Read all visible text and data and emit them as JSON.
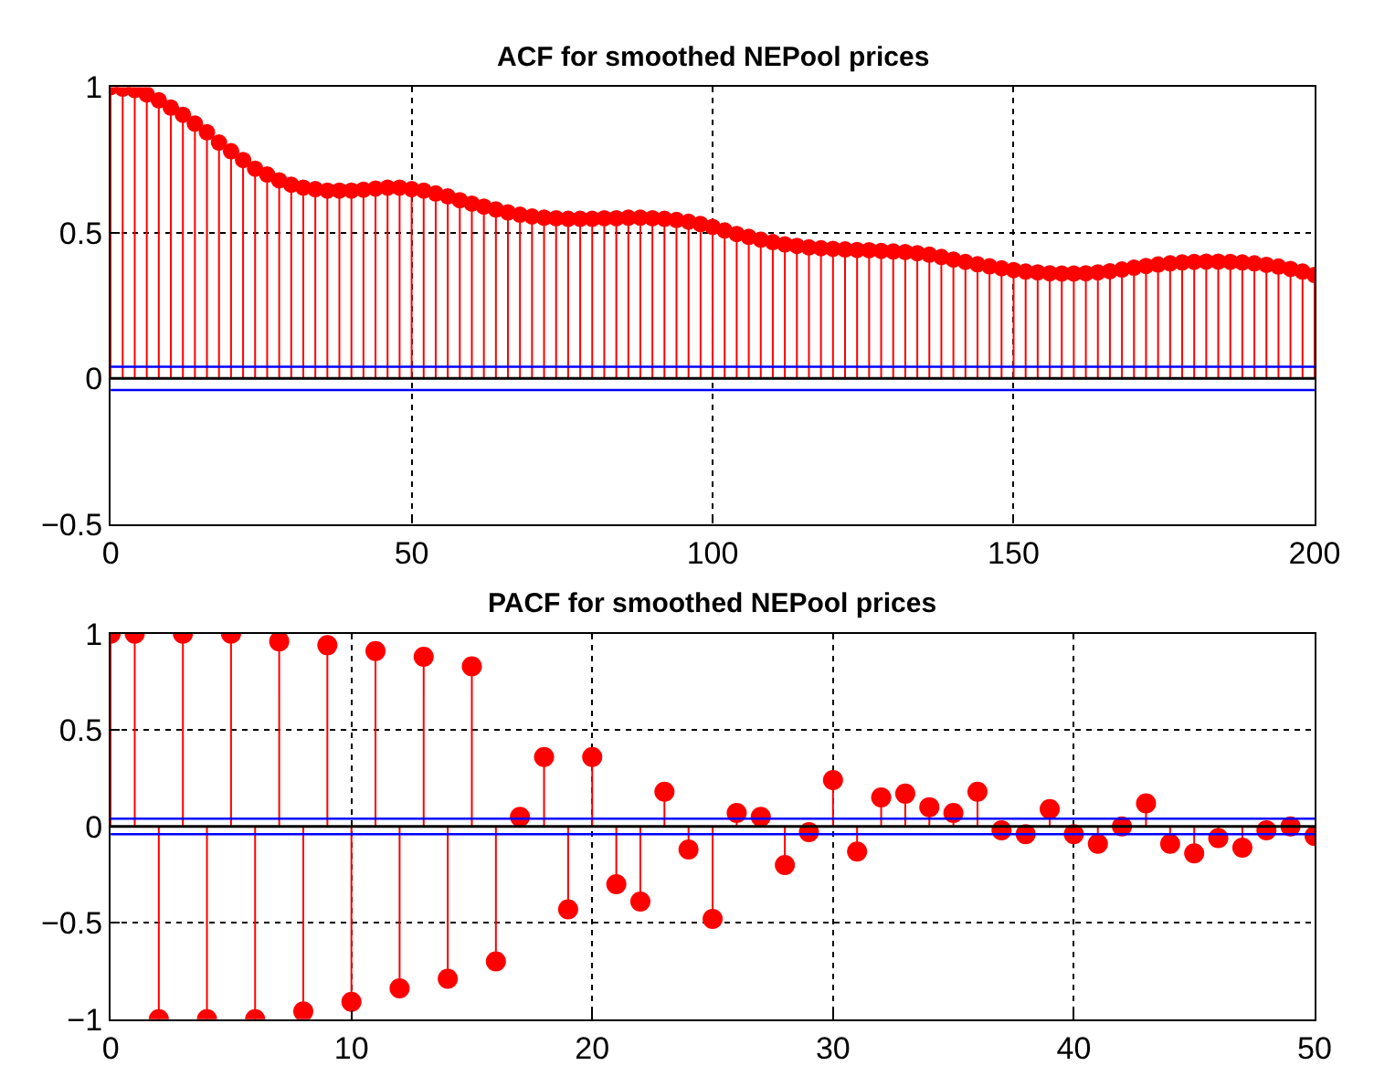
{
  "chart_data": [
    {
      "type": "lollipop",
      "title": "ACF for smoothed NEPool prices",
      "color": "#ff0000",
      "x": [
        0,
        2,
        4,
        6,
        8,
        10,
        12,
        14,
        16,
        18,
        20,
        22,
        24,
        26,
        28,
        30,
        32,
        34,
        36,
        38,
        40,
        42,
        44,
        46,
        48,
        50,
        52,
        54,
        56,
        58,
        60,
        62,
        64,
        66,
        68,
        70,
        72,
        74,
        76,
        78,
        80,
        82,
        84,
        86,
        88,
        90,
        92,
        94,
        96,
        98,
        100,
        102,
        104,
        106,
        108,
        110,
        112,
        114,
        116,
        118,
        120,
        122,
        124,
        126,
        128,
        130,
        132,
        134,
        136,
        138,
        140,
        142,
        144,
        146,
        148,
        150,
        152,
        154,
        156,
        158,
        160,
        162,
        164,
        166,
        168,
        170,
        172,
        174,
        176,
        178,
        180,
        182,
        184,
        186,
        188,
        190,
        192,
        194,
        196,
        198,
        200
      ],
      "values": [
        1.0,
        0.995,
        0.99,
        0.975,
        0.955,
        0.93,
        0.905,
        0.875,
        0.845,
        0.81,
        0.78,
        0.75,
        0.72,
        0.7,
        0.68,
        0.665,
        0.655,
        0.65,
        0.645,
        0.645,
        0.645,
        0.648,
        0.652,
        0.655,
        0.655,
        0.65,
        0.645,
        0.635,
        0.625,
        0.612,
        0.6,
        0.59,
        0.58,
        0.57,
        0.562,
        0.556,
        0.552,
        0.55,
        0.548,
        0.548,
        0.548,
        0.55,
        0.55,
        0.552,
        0.552,
        0.55,
        0.548,
        0.544,
        0.538,
        0.53,
        0.52,
        0.508,
        0.496,
        0.486,
        0.476,
        0.468,
        0.46,
        0.455,
        0.45,
        0.447,
        0.445,
        0.443,
        0.441,
        0.44,
        0.438,
        0.436,
        0.434,
        0.43,
        0.425,
        0.417,
        0.408,
        0.4,
        0.392,
        0.385,
        0.378,
        0.372,
        0.367,
        0.364,
        0.361,
        0.36,
        0.36,
        0.361,
        0.364,
        0.368,
        0.374,
        0.38,
        0.386,
        0.391,
        0.395,
        0.398,
        0.4,
        0.401,
        0.401,
        0.4,
        0.398,
        0.395,
        0.39,
        0.384,
        0.376,
        0.367,
        0.355
      ],
      "xlim": [
        0,
        200
      ],
      "xticks": [
        0,
        50,
        100,
        150,
        200
      ],
      "ylim": [
        -0.5,
        1
      ],
      "yticks": [
        -0.5,
        0,
        0.5,
        1
      ],
      "grid": true,
      "marker": "circle",
      "ref_lines": [
        {
          "axis": "y",
          "value": 0.04,
          "color": "#0000ff"
        },
        {
          "axis": "y",
          "value": -0.04,
          "color": "#0000ff"
        }
      ]
    },
    {
      "type": "lollipop",
      "title": "PACF for smoothed NEPool prices",
      "color": "#ff0000",
      "x": [
        0,
        1,
        2,
        3,
        4,
        5,
        6,
        7,
        8,
        9,
        10,
        11,
        12,
        13,
        14,
        15,
        16,
        17,
        18,
        19,
        20,
        21,
        22,
        23,
        24,
        25,
        26,
        27,
        28,
        29,
        30,
        31,
        32,
        33,
        34,
        35,
        36,
        37,
        38,
        39,
        40,
        41,
        42,
        43,
        44,
        45,
        46,
        47,
        48,
        49,
        50
      ],
      "values": [
        1,
        1,
        -1,
        1,
        -1,
        1,
        -1,
        0.96,
        -0.96,
        0.94,
        -0.91,
        0.91,
        -0.84,
        0.88,
        -0.79,
        0.83,
        -0.7,
        0.05,
        0.36,
        -0.43,
        0.36,
        -0.3,
        -0.39,
        0.18,
        -0.12,
        -0.48,
        0.07,
        0.05,
        -0.2,
        -0.03,
        0.24,
        -0.13,
        0.15,
        0.17,
        0.1,
        0.07,
        0.18,
        -0.02,
        -0.04,
        0.09,
        -0.04,
        -0.09,
        0.0,
        0.12,
        -0.09,
        -0.14,
        -0.06,
        -0.11,
        -0.02,
        0.0,
        -0.05
      ],
      "xlim": [
        0,
        50
      ],
      "xticks": [
        0,
        10,
        20,
        30,
        40,
        50
      ],
      "ylim": [
        -1,
        1
      ],
      "yticks": [
        -1,
        -0.5,
        0,
        0.5,
        1
      ],
      "grid": true,
      "marker": "circle",
      "ref_lines": [
        {
          "axis": "y",
          "value": 0.04,
          "color": "#0000ff"
        },
        {
          "axis": "y",
          "value": -0.04,
          "color": "#0000ff"
        }
      ]
    }
  ]
}
